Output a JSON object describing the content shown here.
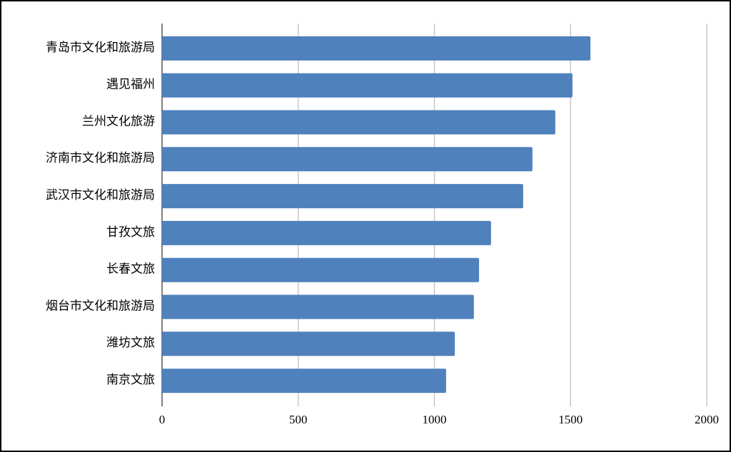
{
  "chart_data": {
    "type": "bar",
    "horizontal": true,
    "categories": [
      "青岛市文化和旅游局",
      "遇见福州",
      "兰州文化旅游",
      "济南市文化和旅游局",
      "武汉市文化和旅游局",
      "甘孜文旅",
      "长春文旅",
      "烟台市文化和旅游局",
      "潍坊文旅",
      "南京文旅"
    ],
    "values": [
      1573,
      1507,
      1444,
      1360,
      1326,
      1208,
      1164,
      1145,
      1075,
      1043
    ],
    "color": "#4f81bd",
    "xlim": [
      0,
      2000
    ],
    "xticks": [
      0,
      500,
      1000,
      1500,
      2000
    ],
    "grid": true
  }
}
